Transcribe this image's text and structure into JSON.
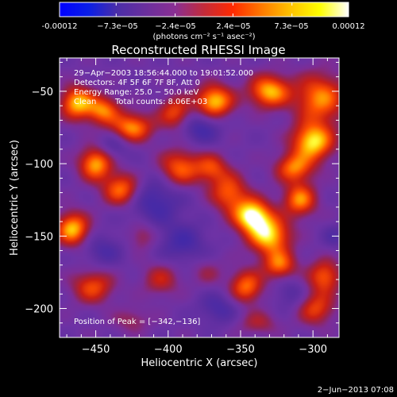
{
  "colorbar": {
    "tick_labels": [
      "-0.00012",
      "−7.3e−05",
      "−2.4e−05",
      "2.4e−05",
      "7.3e−05",
      "0.00012"
    ],
    "tick_values": [
      -0.00012,
      -7.3e-05,
      -2.4e-05,
      2.4e-05,
      7.3e-05,
      0.00012
    ],
    "range": [
      -0.00012,
      0.00012
    ],
    "unit_label": "(photons cm⁻² s⁻¹ asec⁻²)",
    "colors": [
      "#0000ff",
      "#0a1ee6",
      "#4b2ea8",
      "#6b2f9d",
      "#8a2f93",
      "#c32b3a",
      "#ff2a00",
      "#ff7a00",
      "#ffc300",
      "#ffff00",
      "#ffffff"
    ]
  },
  "plot": {
    "title": "Reconstructed RHESSI Image",
    "info": {
      "time_range": "29−Apr−2003 18:56:44.000 to 19:01:52.000",
      "detectors": "Detectors: 4F 5F 6F 7F 8F, Att 0",
      "energy_range": "Energy Range: 25.0 − 50.0 keV",
      "method": "Clean",
      "total_counts": "Total counts: 8.06E+03",
      "peak_position": "Position of Peak = [−342,−136]"
    },
    "colors": {
      "background": "#6633a6",
      "dark_negative": "#2f1f87",
      "hot": "#ff2a00",
      "white": "#ffffff"
    }
  },
  "chart_data": {
    "type": "heatmap",
    "title": "Reconstructed RHESSI Image",
    "xlabel": "Heliocentric X (arcsec)",
    "ylabel": "Heliocentric Y (arcsec)",
    "x_ticks": [
      -450,
      -400,
      -350,
      -300
    ],
    "x_tick_labels": [
      "−450",
      "−400",
      "−350",
      "−300"
    ],
    "y_ticks": [
      -50,
      -100,
      -150,
      -200
    ],
    "y_tick_labels": [
      "−50",
      "−100",
      "−150",
      "−200"
    ],
    "xlim": [
      -475,
      -282
    ],
    "ylim": [
      -220,
      -27
    ],
    "colorbar_range": [
      -0.00012,
      0.00012
    ],
    "peak": {
      "x": -342,
      "y": -136
    },
    "blobs": [
      {
        "x": -463,
        "y": -58,
        "sx": 8,
        "sy": 8,
        "v": 0.8
      },
      {
        "x": -445,
        "y": -63,
        "sx": 8,
        "sy": 7,
        "v": 0.65
      },
      {
        "x": -425,
        "y": -75,
        "sx": 10,
        "sy": 7,
        "v": 0.72
      },
      {
        "x": -395,
        "y": -65,
        "sx": 8,
        "sy": 8,
        "v": 0.55
      },
      {
        "x": -368,
        "y": -57,
        "sx": 9,
        "sy": 8,
        "v": 0.85
      },
      {
        "x": -330,
        "y": -50,
        "sx": 10,
        "sy": 8,
        "v": 0.8
      },
      {
        "x": -295,
        "y": -55,
        "sx": 12,
        "sy": 12,
        "v": 0.7
      },
      {
        "x": -300,
        "y": -85,
        "sx": 10,
        "sy": 9,
        "v": 0.9
      },
      {
        "x": -313,
        "y": -103,
        "sx": 9,
        "sy": 7,
        "v": 0.65
      },
      {
        "x": -342,
        "y": -136,
        "sx": 9,
        "sy": 8,
        "v": 1.0
      },
      {
        "x": -330,
        "y": -150,
        "sx": 10,
        "sy": 9,
        "v": 0.85
      },
      {
        "x": -358,
        "y": -120,
        "sx": 9,
        "sy": 9,
        "v": 0.6
      },
      {
        "x": -309,
        "y": -125,
        "sx": 8,
        "sy": 8,
        "v": 0.7
      },
      {
        "x": -323,
        "y": -170,
        "sx": 8,
        "sy": 7,
        "v": 0.62
      },
      {
        "x": -370,
        "y": -103,
        "sx": 8,
        "sy": 7,
        "v": 0.5
      },
      {
        "x": -466,
        "y": -145,
        "sx": 8,
        "sy": 8,
        "v": 0.82
      },
      {
        "x": -450,
        "y": -100,
        "sx": 8,
        "sy": 8,
        "v": 0.78
      },
      {
        "x": -432,
        "y": -118,
        "sx": 9,
        "sy": 8,
        "v": 0.7
      },
      {
        "x": -392,
        "y": -103,
        "sx": 10,
        "sy": 9,
        "v": 0.62
      },
      {
        "x": -418,
        "y": -150,
        "sx": 7,
        "sy": 7,
        "v": 0.3
      },
      {
        "x": -452,
        "y": -185,
        "sx": 10,
        "sy": 8,
        "v": 0.55
      },
      {
        "x": -405,
        "y": -180,
        "sx": 9,
        "sy": 8,
        "v": 0.38
      },
      {
        "x": -373,
        "y": -175,
        "sx": 8,
        "sy": 7,
        "v": 0.22
      },
      {
        "x": -346,
        "y": -185,
        "sx": 8,
        "sy": 8,
        "v": 0.65
      },
      {
        "x": -292,
        "y": -178,
        "sx": 8,
        "sy": 8,
        "v": 0.6
      },
      {
        "x": -298,
        "y": -200,
        "sx": 9,
        "sy": 8,
        "v": 0.52
      },
      {
        "x": -338,
        "y": -210,
        "sx": 10,
        "sy": 6,
        "v": 0.3
      },
      {
        "x": -425,
        "y": -208,
        "sx": 9,
        "sy": 6,
        "v": 0.25
      },
      {
        "x": -378,
        "y": -75,
        "sx": 10,
        "sy": 8,
        "v": -0.35
      },
      {
        "x": -410,
        "y": -125,
        "sx": 14,
        "sy": 12,
        "v": -0.35
      },
      {
        "x": -390,
        "y": -155,
        "sx": 12,
        "sy": 10,
        "v": -0.3
      },
      {
        "x": -445,
        "y": -160,
        "sx": 10,
        "sy": 8,
        "v": -0.25
      },
      {
        "x": -365,
        "y": -200,
        "sx": 10,
        "sy": 8,
        "v": -0.28
      },
      {
        "x": -315,
        "y": -190,
        "sx": 8,
        "sy": 8,
        "v": -0.22
      },
      {
        "x": -285,
        "y": -150,
        "sx": 6,
        "sy": 6,
        "v": -0.2
      },
      {
        "x": -438,
        "y": -88,
        "sx": 8,
        "sy": 7,
        "v": -0.25
      }
    ]
  },
  "footer": {
    "timestamp": "2−Jun−2013 07:08"
  }
}
